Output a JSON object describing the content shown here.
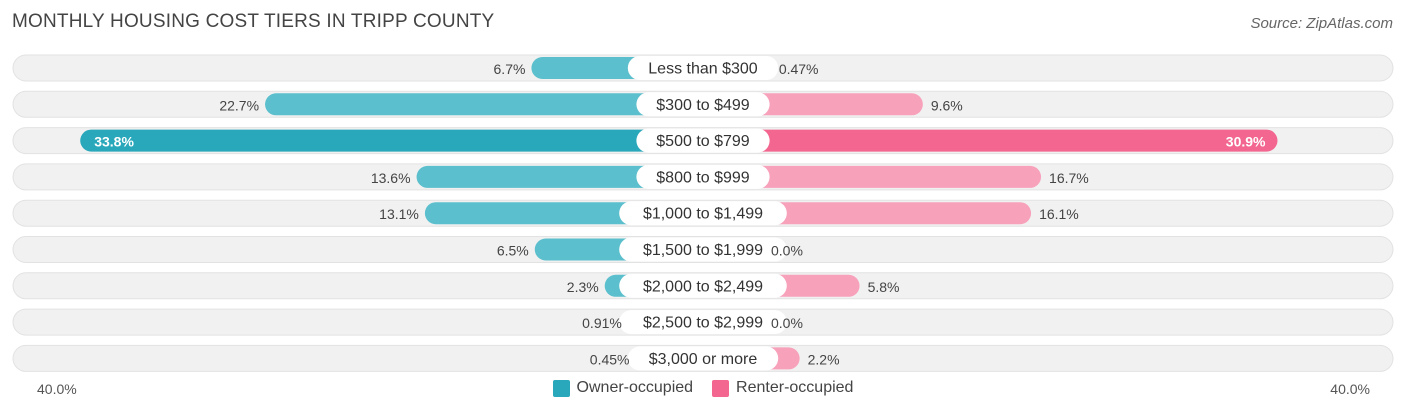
{
  "header": {
    "title": "MONTHLY HOUSING COST TIERS IN TRIPP COUNTY",
    "source": "Source: ZipAtlas.com"
  },
  "colors": {
    "owner": "#5bbfcd",
    "owner_strong": "#29a8bb",
    "renter": "#f7a1bb",
    "renter_strong": "#f2668f",
    "track": "#f1f1f1"
  },
  "chart_data": {
    "type": "bar",
    "orientation": "horizontal-diverging",
    "categories": [
      "Less than $300",
      "$300 to $499",
      "$500 to $799",
      "$800 to $999",
      "$1,000 to $1,499",
      "$1,500 to $1,999",
      "$2,000 to $2,499",
      "$2,500 to $2,999",
      "$3,000 or more"
    ],
    "series": [
      {
        "name": "Owner-occupied",
        "side": "left",
        "values": [
          6.7,
          22.7,
          33.8,
          13.6,
          13.1,
          6.5,
          2.3,
          0.91,
          0.45
        ],
        "labels": [
          "6.7%",
          "22.7%",
          "33.8%",
          "13.6%",
          "13.1%",
          "6.5%",
          "2.3%",
          "0.91%",
          "0.45%"
        ]
      },
      {
        "name": "Renter-occupied",
        "side": "right",
        "values": [
          0.47,
          9.6,
          30.9,
          16.7,
          16.1,
          0.0,
          5.8,
          0.0,
          2.2
        ],
        "labels": [
          "0.47%",
          "9.6%",
          "30.9%",
          "16.7%",
          "16.1%",
          "0.0%",
          "5.8%",
          "0.0%",
          "2.2%"
        ]
      }
    ],
    "xlim": [
      -40,
      40
    ],
    "axis_labels": {
      "left": "40.0%",
      "right": "40.0%"
    },
    "legend": "bottom-center",
    "grid": false
  }
}
